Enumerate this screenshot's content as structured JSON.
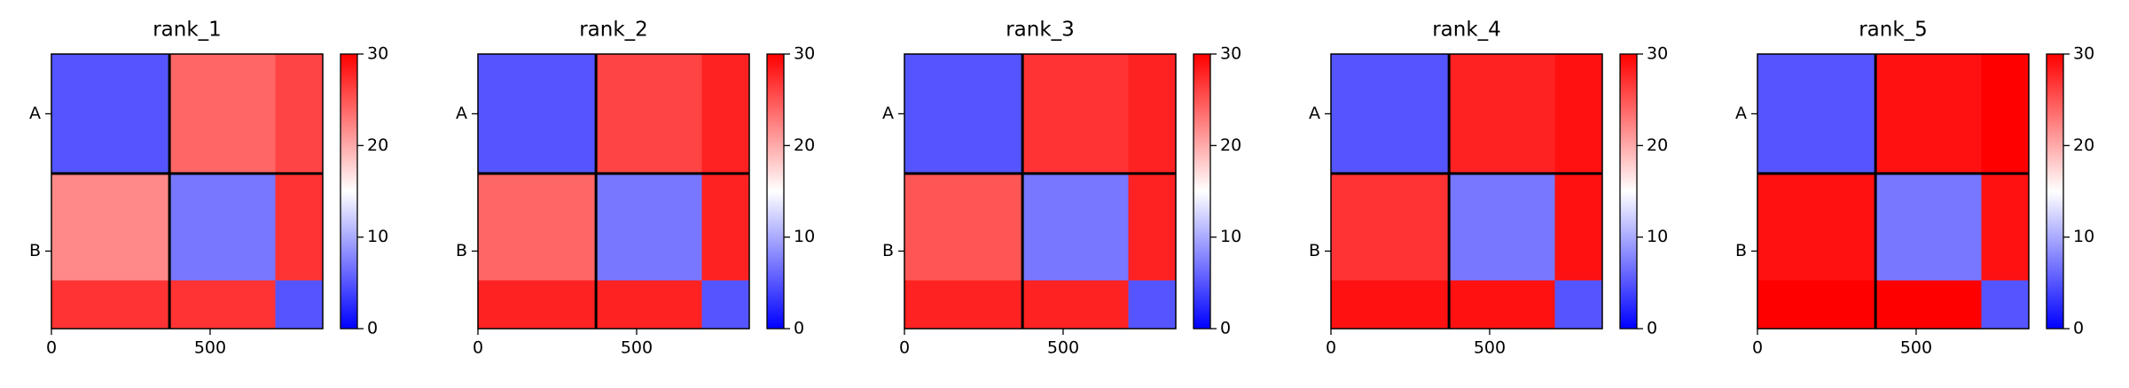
{
  "chart_data": [
    {
      "type": "heatmap",
      "title": "rank_1",
      "xbins": [
        0,
        372,
        705,
        855
      ],
      "ybins": [
        0,
        372,
        705,
        855
      ],
      "values": [
        [
          5,
          24,
          26
        ],
        [
          22,
          7,
          27
        ],
        [
          27,
          27,
          5
        ]
      ],
      "xlim": [
        0,
        855
      ],
      "ylim": [
        855,
        0
      ],
      "xticks": [
        0,
        500
      ],
      "yticks": [
        {
          "value": 186,
          "label": "A"
        },
        {
          "value": 613.5,
          "label": "B"
        }
      ],
      "chain_breaks": [
        372
      ],
      "colormap": [
        "#0000ff",
        "#ffffff",
        "#ff0000"
      ],
      "clim": [
        0,
        30
      ],
      "cticks": [
        0,
        10,
        20,
        30
      ]
    },
    {
      "type": "heatmap",
      "title": "rank_2",
      "xbins": [
        0,
        372,
        705,
        855
      ],
      "ybins": [
        0,
        372,
        705,
        855
      ],
      "values": [
        [
          5,
          26,
          28
        ],
        [
          24,
          7,
          28
        ],
        [
          28,
          28,
          5
        ]
      ],
      "xlim": [
        0,
        855
      ],
      "ylim": [
        855,
        0
      ],
      "xticks": [
        0,
        500
      ],
      "yticks": [
        {
          "value": 186,
          "label": "A"
        },
        {
          "value": 613.5,
          "label": "B"
        }
      ],
      "chain_breaks": [
        372
      ],
      "colormap": [
        "#0000ff",
        "#ffffff",
        "#ff0000"
      ],
      "clim": [
        0,
        30
      ],
      "cticks": [
        0,
        10,
        20,
        30
      ]
    },
    {
      "type": "heatmap",
      "title": "rank_3",
      "xbins": [
        0,
        372,
        705,
        855
      ],
      "ybins": [
        0,
        372,
        705,
        855
      ],
      "values": [
        [
          5,
          27,
          28
        ],
        [
          25,
          7,
          28
        ],
        [
          28,
          28,
          5
        ]
      ],
      "xlim": [
        0,
        855
      ],
      "ylim": [
        855,
        0
      ],
      "xticks": [
        0,
        500
      ],
      "yticks": [
        {
          "value": 186,
          "label": "A"
        },
        {
          "value": 613.5,
          "label": "B"
        }
      ],
      "chain_breaks": [
        372
      ],
      "colormap": [
        "#0000ff",
        "#ffffff",
        "#ff0000"
      ],
      "clim": [
        0,
        30
      ],
      "cticks": [
        0,
        10,
        20,
        30
      ]
    },
    {
      "type": "heatmap",
      "title": "rank_4",
      "xbins": [
        0,
        372,
        705,
        855
      ],
      "ybins": [
        0,
        372,
        705,
        855
      ],
      "values": [
        [
          5,
          28,
          29
        ],
        [
          27,
          7,
          29
        ],
        [
          29,
          29,
          5
        ]
      ],
      "xlim": [
        0,
        855
      ],
      "ylim": [
        855,
        0
      ],
      "xticks": [
        0,
        500
      ],
      "yticks": [
        {
          "value": 186,
          "label": "A"
        },
        {
          "value": 613.5,
          "label": "B"
        }
      ],
      "chain_breaks": [
        372
      ],
      "colormap": [
        "#0000ff",
        "#ffffff",
        "#ff0000"
      ],
      "clim": [
        0,
        30
      ],
      "cticks": [
        0,
        10,
        20,
        30
      ]
    },
    {
      "type": "heatmap",
      "title": "rank_5",
      "xbins": [
        0,
        372,
        705,
        855
      ],
      "ybins": [
        0,
        372,
        705,
        855
      ],
      "values": [
        [
          5,
          29,
          30
        ],
        [
          29,
          7,
          29
        ],
        [
          30,
          30,
          5
        ]
      ],
      "xlim": [
        0,
        855
      ],
      "ylim": [
        855,
        0
      ],
      "xticks": [
        0,
        500
      ],
      "yticks": [
        {
          "value": 186,
          "label": "A"
        },
        {
          "value": 613.5,
          "label": "B"
        }
      ],
      "chain_breaks": [
        372
      ],
      "colormap": [
        "#0000ff",
        "#ffffff",
        "#ff0000"
      ],
      "clim": [
        0,
        30
      ],
      "cticks": [
        0,
        10,
        20,
        30
      ]
    }
  ]
}
